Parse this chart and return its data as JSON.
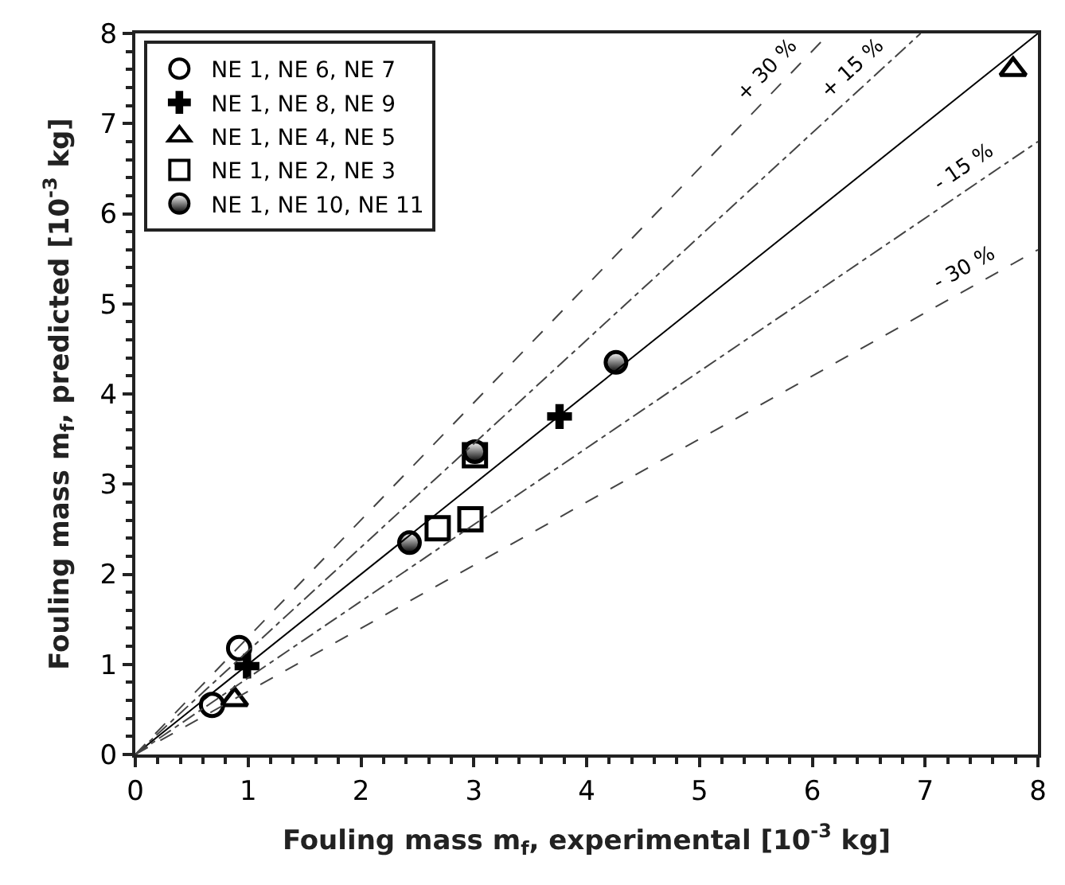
{
  "chart_data": {
    "type": "scatter",
    "xlabel": "Fouling mass m$_{f}$, experimental [10$^{-3}$ kg]",
    "ylabel": "Fouling mass m$_{f}$, predicted [10$^{-3}$ kg]",
    "xlim": [
      0,
      8
    ],
    "ylim": [
      0,
      8
    ],
    "xticks": [
      0,
      1,
      2,
      3,
      4,
      5,
      6,
      7,
      8
    ],
    "yticks": [
      0,
      1,
      2,
      3,
      4,
      5,
      6,
      7,
      8
    ],
    "legend": "top left",
    "series": [
      {
        "name": "NE 1, NE 6, NE 7",
        "color": "#000000",
        "marker": "circle",
        "x": [
          0.68,
          0.92
        ],
        "values": [
          0.55,
          1.18
        ]
      },
      {
        "name": "NE 1, NE 8, NE 9",
        "color": "#000000",
        "marker": "cross",
        "x": [
          0.99,
          3.76
        ],
        "values": [
          0.98,
          3.75
        ]
      },
      {
        "name": "NE 1, NE 4, NE 5",
        "color": "#000000",
        "marker": "triangle",
        "x": [
          0.88,
          7.78
        ],
        "values": [
          0.61,
          7.6
        ]
      },
      {
        "name": "NE 1, NE 2, NE 3",
        "color": "#000000",
        "marker": "square",
        "x": [
          2.68,
          2.97,
          3.01
        ],
        "values": [
          2.51,
          2.61,
          3.32
        ]
      },
      {
        "name": "NE 1, NE 10, NE 11",
        "color": "#000000",
        "marker": "circle",
        "x": [
          2.43,
          4.26,
          3.01
        ],
        "values": [
          2.35,
          4.35,
          3.36
        ]
      },
      {
        "type": "line",
        "color": "#000000",
        "line_style": "solid",
        "x": [
          0,
          8
        ],
        "values": [
          0,
          8
        ]
      },
      {
        "type": "line",
        "name": "+ 15 %",
        "color": "#444444",
        "line_style": "dashdot",
        "x": [
          0,
          6.96
        ],
        "values": [
          0,
          8
        ]
      },
      {
        "type": "line",
        "name": "+ 30 %",
        "color": "#444444",
        "line_style": "dashed",
        "x": [
          0,
          6.15
        ],
        "values": [
          0,
          8
        ]
      },
      {
        "type": "line",
        "name": "- 15 %",
        "color": "#444444",
        "line_style": "dashdot",
        "x": [
          0,
          8
        ],
        "values": [
          0,
          6.8
        ]
      },
      {
        "type": "line",
        "name": "- 30 %",
        "color": "#444444",
        "line_style": "dashed",
        "x": [
          0,
          8
        ],
        "values": [
          0,
          5.6
        ]
      }
    ]
  }
}
